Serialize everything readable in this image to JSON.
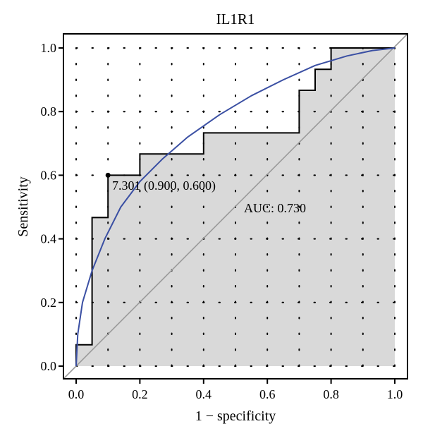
{
  "chart_data": {
    "type": "line",
    "title": "IL1R1",
    "xlabel": "1 − specificity",
    "ylabel": "Sensitivity",
    "xlim": [
      0.0,
      1.0
    ],
    "ylim": [
      0.0,
      1.0
    ],
    "xticks": [
      "0.0",
      "0.2",
      "0.4",
      "0.6",
      "0.8",
      "1.0"
    ],
    "yticks": [
      "0.0",
      "0.2",
      "0.4",
      "0.6",
      "0.8",
      "1.0"
    ],
    "grid": "dotted",
    "series": [
      {
        "kind": "empirical-step",
        "color": "#000000",
        "fill": "#d9d9d9",
        "points": [
          [
            0.0,
            0.0
          ],
          [
            0.0,
            0.067
          ],
          [
            0.05,
            0.067
          ],
          [
            0.05,
            0.467
          ],
          [
            0.1,
            0.467
          ],
          [
            0.1,
            0.6
          ],
          [
            0.2,
            0.6
          ],
          [
            0.2,
            0.667
          ],
          [
            0.4,
            0.667
          ],
          [
            0.4,
            0.733
          ],
          [
            0.7,
            0.733
          ],
          [
            0.7,
            0.867
          ],
          [
            0.75,
            0.867
          ],
          [
            0.75,
            0.933
          ],
          [
            0.8,
            0.933
          ],
          [
            0.8,
            1.0
          ],
          [
            1.0,
            1.0
          ]
        ]
      },
      {
        "kind": "smoothed",
        "color": "#3a4fa3",
        "points": [
          [
            0.0,
            0.0
          ],
          [
            0.005,
            0.1
          ],
          [
            0.02,
            0.2
          ],
          [
            0.05,
            0.3
          ],
          [
            0.09,
            0.4
          ],
          [
            0.14,
            0.5
          ],
          [
            0.2,
            0.58
          ],
          [
            0.27,
            0.65
          ],
          [
            0.35,
            0.72
          ],
          [
            0.45,
            0.79
          ],
          [
            0.55,
            0.85
          ],
          [
            0.65,
            0.9
          ],
          [
            0.75,
            0.945
          ],
          [
            0.85,
            0.975
          ],
          [
            0.93,
            0.992
          ],
          [
            1.0,
            1.0
          ]
        ]
      },
      {
        "kind": "reference-diagonal",
        "color": "#9a9a9a",
        "points": [
          [
            0.0,
            0.0
          ],
          [
            1.0,
            1.0
          ]
        ]
      }
    ],
    "threshold_point": {
      "x": 0.1,
      "y": 0.6,
      "label": "7.301 (0.900, 0.600)"
    },
    "auc_label": "AUC: 0.730"
  }
}
